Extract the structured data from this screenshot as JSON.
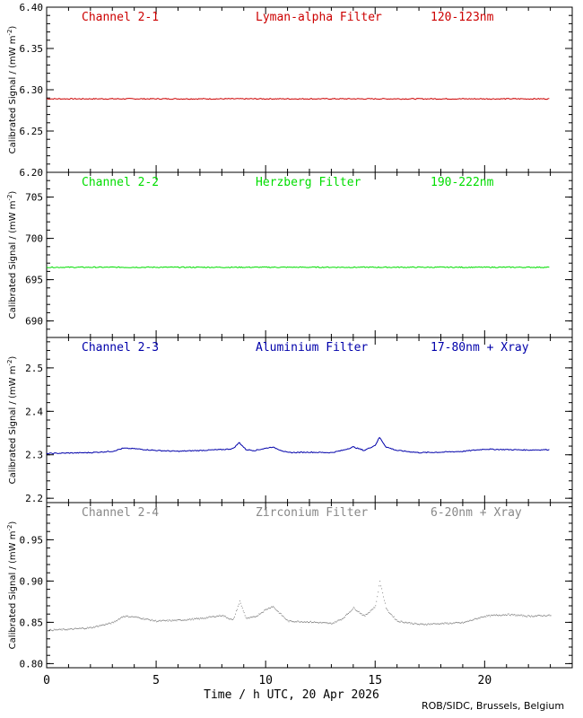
{
  "figure": {
    "xlabel": "Time / h UTC, 20 Apr 2026",
    "credit": "ROB/SIDC, Brussels, Belgium",
    "xlim": [
      0,
      24
    ],
    "xticks": [
      0,
      5,
      10,
      15,
      20
    ],
    "ylabel_main": "Calibrated Signal / (mW m",
    "ylabel_exp": "-2",
    "ylabel_close": ")"
  },
  "colors": {
    "channel_2_1": "#cc0000",
    "channel_2_2": "#00dd00",
    "channel_2_3": "#0000aa",
    "channel_2_4": "#888888",
    "axes": "#000000"
  },
  "panels": [
    {
      "channel": "Channel 2-1",
      "filter": "Lyman-alpha Filter",
      "band": "120-123nm",
      "ylim": [
        6.2,
        6.4
      ],
      "yticks": [
        "6.20",
        "6.25",
        "6.30",
        "6.35",
        "6.40"
      ],
      "series_style": "line"
    },
    {
      "channel": "Channel 2-2",
      "filter": "Herzberg Filter",
      "band": "190-222nm",
      "ylim": [
        688,
        708
      ],
      "yticks": [
        "690",
        "695",
        "700",
        "705"
      ],
      "series_style": "line"
    },
    {
      "channel": "Channel 2-3",
      "filter": "Aluminium Filter",
      "band": "17-80nm + Xray",
      "ylim": [
        2.19,
        2.57
      ],
      "yticks": [
        "2.2",
        "2.3",
        "2.4",
        "2.5"
      ],
      "series_style": "line"
    },
    {
      "channel": "Channel 2-4",
      "filter": "Zirconium Filter",
      "band": "6-20nm + Xray",
      "ylim": [
        0.795,
        0.995
      ],
      "yticks": [
        "0.80",
        "0.85",
        "0.90",
        "0.95"
      ],
      "series_style": "dots"
    }
  ],
  "chart_data": [
    {
      "type": "line",
      "title": "Channel 2-1  Lyman-alpha Filter  120-123nm",
      "xlabel": "Time / h UTC, 20 Apr 2026",
      "ylabel": "Calibrated Signal / (mW m-2)",
      "xlim": [
        0,
        24
      ],
      "ylim": [
        6.2,
        6.4
      ],
      "x": [
        0,
        2,
        4,
        6,
        8,
        10,
        12,
        14,
        16,
        18,
        20,
        22,
        23
      ],
      "values": [
        6.289,
        6.289,
        6.289,
        6.289,
        6.289,
        6.289,
        6.289,
        6.289,
        6.289,
        6.289,
        6.289,
        6.289,
        6.289
      ]
    },
    {
      "type": "line",
      "title": "Channel 2-2  Herzberg Filter  190-222nm",
      "xlabel": "Time / h UTC, 20 Apr 2026",
      "ylabel": "Calibrated Signal / (mW m-2)",
      "xlim": [
        0,
        24
      ],
      "ylim": [
        688,
        708
      ],
      "x": [
        0,
        2,
        4,
        6,
        8,
        10,
        12,
        14,
        16,
        18,
        20,
        22,
        23
      ],
      "values": [
        696.5,
        696.5,
        696.5,
        696.5,
        696.5,
        696.5,
        696.5,
        696.5,
        696.5,
        696.5,
        696.5,
        696.5,
        696.5
      ]
    },
    {
      "type": "line",
      "title": "Channel 2-3  Aluminium Filter  17-80nm + Xray",
      "xlabel": "Time / h UTC, 20 Apr 2026",
      "ylabel": "Calibrated Signal / (mW m-2)",
      "xlim": [
        0,
        24
      ],
      "ylim": [
        2.19,
        2.57
      ],
      "x": [
        0,
        1,
        2,
        3,
        3.5,
        4,
        5,
        6,
        7,
        8,
        8.5,
        8.8,
        9.1,
        9.5,
        10,
        10.3,
        11,
        12,
        13,
        13.5,
        14,
        14.5,
        15,
        15.2,
        15.5,
        16,
        17,
        18,
        19,
        20,
        21,
        22,
        23
      ],
      "values": [
        2.303,
        2.304,
        2.305,
        2.308,
        2.315,
        2.314,
        2.31,
        2.308,
        2.31,
        2.312,
        2.314,
        2.328,
        2.312,
        2.31,
        2.315,
        2.318,
        2.305,
        2.306,
        2.305,
        2.31,
        2.318,
        2.31,
        2.322,
        2.34,
        2.318,
        2.31,
        2.305,
        2.306,
        2.308,
        2.313,
        2.312,
        2.311,
        2.312
      ]
    },
    {
      "type": "scatter",
      "title": "Channel 2-4  Zirconium Filter  6-20nm + Xray",
      "xlabel": "Time / h UTC, 20 Apr 2026",
      "ylabel": "Calibrated Signal / (mW m-2)",
      "xlim": [
        0,
        24
      ],
      "ylim": [
        0.795,
        0.995
      ],
      "x": [
        0,
        1,
        2,
        3,
        3.5,
        4,
        5,
        6,
        7,
        8,
        8.5,
        8.8,
        9.1,
        9.5,
        10,
        10.3,
        11,
        12,
        13,
        13.5,
        14,
        14.5,
        15,
        15.2,
        15.5,
        16,
        17,
        18,
        19,
        20,
        21,
        22,
        23
      ],
      "values": [
        0.841,
        0.842,
        0.844,
        0.85,
        0.858,
        0.857,
        0.852,
        0.853,
        0.855,
        0.859,
        0.853,
        0.876,
        0.855,
        0.857,
        0.866,
        0.87,
        0.852,
        0.851,
        0.849,
        0.855,
        0.868,
        0.858,
        0.87,
        0.9,
        0.866,
        0.852,
        0.848,
        0.849,
        0.85,
        0.858,
        0.86,
        0.858,
        0.859
      ]
    }
  ]
}
